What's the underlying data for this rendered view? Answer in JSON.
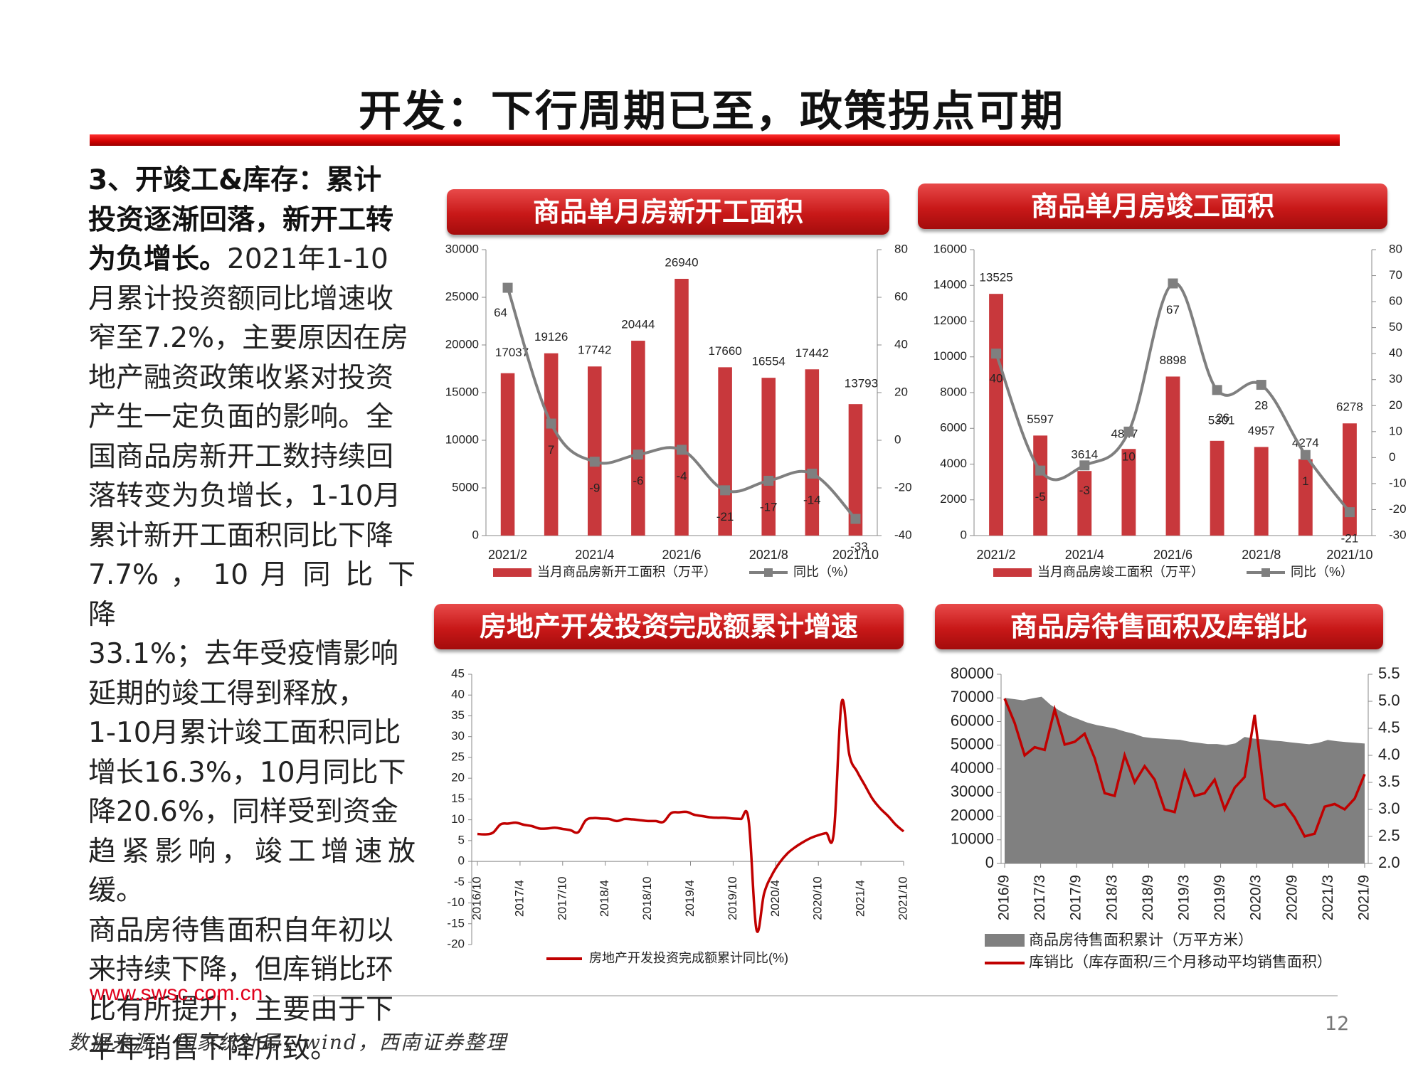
{
  "slide": {
    "title": "开发：下行周期已至，政策拐点可期",
    "body_lines": [
      [
        {
          "bold": true,
          "text": "3、开竣工&库存：累计"
        }
      ],
      [
        {
          "bold": true,
          "text": "投资逐渐回落，新开工转"
        }
      ],
      [
        {
          "bold": true,
          "text": "为负增长。"
        },
        {
          "bold": false,
          "text": "2021年1-10"
        }
      ],
      [
        {
          "bold": false,
          "text": "月累计投资额同比增速收"
        }
      ],
      [
        {
          "bold": false,
          "text": "窄至7.2%，主要原因在房"
        }
      ],
      [
        {
          "bold": false,
          "text": "地产融资政策收紧对投资"
        }
      ],
      [
        {
          "bold": false,
          "text": "产生一定负面的影响。全"
        }
      ],
      [
        {
          "bold": false,
          "text": "国商品房新开工数持续回"
        }
      ],
      [
        {
          "bold": false,
          "text": "落转变为负增长，1-10月"
        }
      ],
      [
        {
          "bold": false,
          "text": "累计新开工面积同比下降"
        }
      ],
      [
        {
          "bold": false,
          "text": "7.7% ， 10 月 同 比 下 降"
        }
      ],
      [
        {
          "bold": false,
          "text": "33.1%；去年受疫情影响"
        }
      ],
      [
        {
          "bold": false,
          "text": "延期的竣工得到释放，"
        }
      ],
      [
        {
          "bold": false,
          "text": "1-10月累计竣工面积同比"
        }
      ],
      [
        {
          "bold": false,
          "text": "增长16.3%，10月同比下"
        }
      ],
      [
        {
          "bold": false,
          "text": "降20.6%，同样受到资金"
        }
      ],
      [
        {
          "bold": false,
          "text": "趋紧影响，竣工增速放缓。"
        }
      ],
      [
        {
          "bold": false,
          "text": "商品房待售面积自年初以"
        }
      ],
      [
        {
          "bold": false,
          "text": "来持续下降，但库销比环"
        }
      ],
      [
        {
          "bold": false,
          "text": "比有所提升，主要由于下"
        }
      ],
      [
        {
          "bold": false,
          "text": "半年销售下降所致。"
        }
      ]
    ],
    "site_url": "www.swsc.com.cn",
    "source": "数据来源：国家统计局，wind，西南证券整理",
    "page_number": "12",
    "accent_color": "#d10000"
  },
  "chart_data": [
    {
      "type": "bar",
      "title": "商品单月房新开工面积",
      "categories": [
        "2021/2",
        "2021/3",
        "2021/4",
        "2021/5",
        "2021/6",
        "2021/7",
        "2021/8",
        "2021/9",
        "2021/10"
      ],
      "x_tick_labels": [
        "2021/2",
        "2021/4",
        "2021/6",
        "2021/8",
        "2021/10"
      ],
      "series": [
        {
          "name": "当月商品房新开工面积（万平）",
          "kind": "bar",
          "axis": "left",
          "color": "#c8383c",
          "values": [
            17037,
            19126,
            17742,
            20444,
            26940,
            17660,
            16554,
            17442,
            13793
          ],
          "labels": [
            "17037",
            "19126",
            "17742",
            "20444",
            "26940",
            "17660",
            "16554",
            "17442",
            "13793"
          ]
        },
        {
          "name": "同比（%）",
          "kind": "line",
          "axis": "right",
          "color": "#7f7f7f",
          "values": [
            64,
            7,
            -9,
            -6,
            -4,
            -21,
            -17,
            -14,
            -33
          ],
          "labels": [
            "64",
            "7",
            "-9",
            "-6",
            "-4",
            "-21",
            "-17",
            "-14",
            "-33"
          ]
        }
      ],
      "y_left": {
        "min": 0,
        "max": 30000,
        "ticks": [
          "0",
          "5000",
          "10000",
          "15000",
          "20000",
          "25000",
          "30000"
        ]
      },
      "y_right": {
        "min": -40,
        "max": 80,
        "ticks": [
          "-40",
          "-20",
          "0",
          "20",
          "40",
          "60",
          "80"
        ]
      },
      "legend_position": "bottom"
    },
    {
      "type": "bar",
      "title": "商品单月房竣工面积",
      "categories": [
        "2021/2",
        "2021/3",
        "2021/4",
        "2021/5",
        "2021/6",
        "2021/7",
        "2021/8",
        "2021/9",
        "2021/10"
      ],
      "x_tick_labels": [
        "2021/2",
        "2021/4",
        "2021/6",
        "2021/8",
        "2021/10"
      ],
      "series": [
        {
          "name": "当月商品房竣工面积（万平）",
          "kind": "bar",
          "axis": "left",
          "color": "#c8383c",
          "values": [
            13525,
            5597,
            3614,
            4847,
            8898,
            5301,
            4957,
            4274,
            6278
          ],
          "labels": [
            "13525",
            "5597",
            "3614",
            "4847",
            "8898",
            "5301",
            "4957",
            "4274",
            "6278"
          ]
        },
        {
          "name": "同比（%）",
          "kind": "line",
          "axis": "right",
          "color": "#7f7f7f",
          "values": [
            40,
            -5,
            -3,
            10,
            67,
            26,
            28,
            1,
            -21
          ],
          "labels": [
            "40",
            "-5",
            "-3",
            "10",
            "67",
            "26",
            "28",
            "1",
            "-21"
          ]
        }
      ],
      "y_left": {
        "min": 0,
        "max": 16000,
        "ticks": [
          "0",
          "2000",
          "4000",
          "6000",
          "8000",
          "10000",
          "12000",
          "14000",
          "16000"
        ]
      },
      "y_right": {
        "min": -30,
        "max": 80,
        "ticks": [
          "-30",
          "-20",
          "-10",
          "0",
          "10",
          "20",
          "30",
          "40",
          "50",
          "60",
          "70",
          "80"
        ]
      },
      "legend_position": "bottom"
    },
    {
      "type": "line",
      "title": "房地产开发投资完成额累计增速",
      "x_tick_labels": [
        "2016/10",
        "2017/4",
        "2017/10",
        "2018/4",
        "2018/10",
        "2019/4",
        "2019/10",
        "2020/4",
        "2020/10",
        "2021/4",
        "2021/10"
      ],
      "x": [
        "2016/10",
        "2016/11",
        "2016/12",
        "2017/2",
        "2017/3",
        "2017/4",
        "2017/5",
        "2017/6",
        "2017/7",
        "2017/8",
        "2017/9",
        "2017/10",
        "2017/11",
        "2017/12",
        "2018/2",
        "2018/3",
        "2018/4",
        "2018/5",
        "2018/6",
        "2018/7",
        "2018/8",
        "2018/9",
        "2018/10",
        "2018/11",
        "2018/12",
        "2019/2",
        "2019/3",
        "2019/4",
        "2019/5",
        "2019/6",
        "2019/7",
        "2019/8",
        "2019/9",
        "2019/10",
        "2019/11",
        "2019/12",
        "2020/2",
        "2020/3",
        "2020/4",
        "2020/5",
        "2020/6",
        "2020/7",
        "2020/8",
        "2020/9",
        "2020/10",
        "2020/11",
        "2020/12",
        "2021/2",
        "2021/3",
        "2021/4",
        "2021/5",
        "2021/6",
        "2021/7",
        "2021/8",
        "2021/9",
        "2021/10"
      ],
      "series": [
        {
          "name": "房地产开发投资完成额累计同比(%)",
          "color": "#c00000",
          "values": [
            6.6,
            6.5,
            6.9,
            8.9,
            9.1,
            9.3,
            8.8,
            8.5,
            7.9,
            7.9,
            8.1,
            7.8,
            7.5,
            7.0,
            9.9,
            10.4,
            10.3,
            10.2,
            9.7,
            10.2,
            10.1,
            9.9,
            9.7,
            9.7,
            9.5,
            11.6,
            11.8,
            11.9,
            11.2,
            10.9,
            10.6,
            10.5,
            10.5,
            10.3,
            10.2,
            9.9,
            -16.3,
            -7.7,
            -3.3,
            -0.3,
            1.9,
            3.4,
            4.6,
            5.6,
            6.3,
            6.8,
            7.0,
            38.3,
            25.6,
            21.6,
            18.3,
            15.0,
            12.7,
            10.9,
            8.8,
            7.2
          ]
        }
      ],
      "y": {
        "min": -20,
        "max": 45,
        "ticks": [
          "-20",
          "-15",
          "-10",
          "-5",
          "0",
          "5",
          "10",
          "15",
          "20",
          "25",
          "30",
          "35",
          "40",
          "45"
        ]
      },
      "legend_position": "bottom"
    },
    {
      "type": "area",
      "title": "商品房待售面积及库销比",
      "x_tick_labels": [
        "2016/9",
        "2017/3",
        "2017/9",
        "2018/3",
        "2018/9",
        "2019/3",
        "2019/9",
        "2020/3",
        "2020/9",
        "2021/3",
        "2021/9"
      ],
      "series": [
        {
          "name": "商品房待售面积累计（万平方米）",
          "kind": "area",
          "axis": "left",
          "color": "#808080",
          "values": [
            70000,
            69500,
            69000,
            69800,
            70500,
            67000,
            64500,
            62500,
            61000,
            59500,
            58500,
            57800,
            57000,
            55800,
            54800,
            53500,
            53000,
            52800,
            52500,
            52300,
            51500,
            51000,
            50500,
            50500,
            50000,
            50800,
            53500,
            52800,
            52500,
            52000,
            51700,
            51200,
            50800,
            50400,
            51000,
            52200,
            51700,
            51300,
            51000,
            50700
          ]
        },
        {
          "name": "库销比（库存面积/三个月移动平均销售面积）",
          "kind": "line",
          "axis": "right",
          "color": "#c00000",
          "values": [
            5.05,
            4.6,
            4.0,
            4.15,
            4.1,
            4.85,
            4.2,
            4.25,
            4.4,
            3.95,
            3.3,
            3.25,
            4.0,
            3.5,
            3.8,
            3.55,
            3.0,
            2.95,
            3.7,
            3.25,
            3.3,
            3.55,
            3.0,
            3.4,
            3.6,
            4.75,
            3.2,
            3.05,
            3.1,
            2.85,
            2.5,
            2.55,
            3.05,
            3.1,
            3.0,
            3.2,
            3.65
          ]
        }
      ],
      "y_left": {
        "min": 0,
        "max": 80000,
        "ticks": [
          "0",
          "10000",
          "20000",
          "30000",
          "40000",
          "50000",
          "60000",
          "70000",
          "80000"
        ]
      },
      "y_right": {
        "min": 2.0,
        "max": 5.5,
        "ticks": [
          "2.0",
          "2.5",
          "3.0",
          "3.5",
          "4.0",
          "4.5",
          "5.0",
          "5.5"
        ]
      },
      "legend_position": "bottom"
    }
  ]
}
